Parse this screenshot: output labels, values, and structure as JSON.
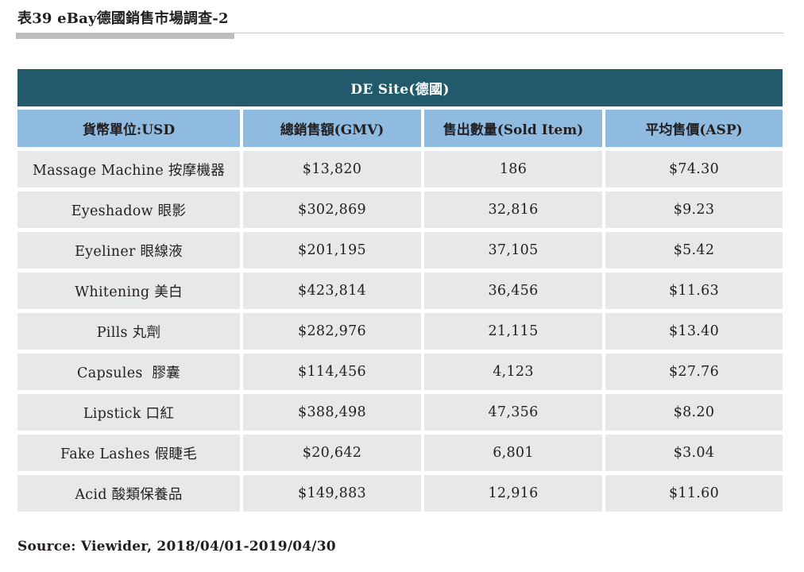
{
  "document": {
    "title": "表39 eBay德國銷售市場調查-2",
    "source": "Source: Viewider, 2018/04/01-2019/04/30"
  },
  "colors": {
    "caption_bg": "#225a6b",
    "header_bg": "#8fbbe1",
    "row_bg": "#e7e8e9",
    "title_rule": "#bcbcbc"
  },
  "table": {
    "caption": "DE Site(德國)",
    "headers": [
      "貨幣單位:USD",
      "總銷售額(GMV)",
      "售出數量(Sold Item)",
      "平均售價(ASP)"
    ],
    "rows": [
      [
        "Massage Machine 按摩機器",
        "$13,820",
        "186",
        "$74.30"
      ],
      [
        "Eyeshadow 眼影",
        "$302,869",
        "32,816",
        "$9.23"
      ],
      [
        "Eyeliner 眼線液",
        "$201,195",
        "37,105",
        "$5.42"
      ],
      [
        "Whitening 美白",
        "$423,814",
        "36,456",
        "$11.63"
      ],
      [
        "Pills 丸劑",
        "$282,976",
        "21,115",
        "$13.40"
      ],
      [
        "Capsules  膠囊",
        "$114,456",
        "4,123",
        "$27.76"
      ],
      [
        "Lipstick 口紅",
        "$388,498",
        "47,356",
        "$8.20"
      ],
      [
        "Fake Lashes 假睫毛",
        "$20,642",
        "6,801",
        "$3.04"
      ],
      [
        "Acid 酸類保養品",
        "$149,883",
        "12,916",
        "$11.60"
      ]
    ]
  }
}
